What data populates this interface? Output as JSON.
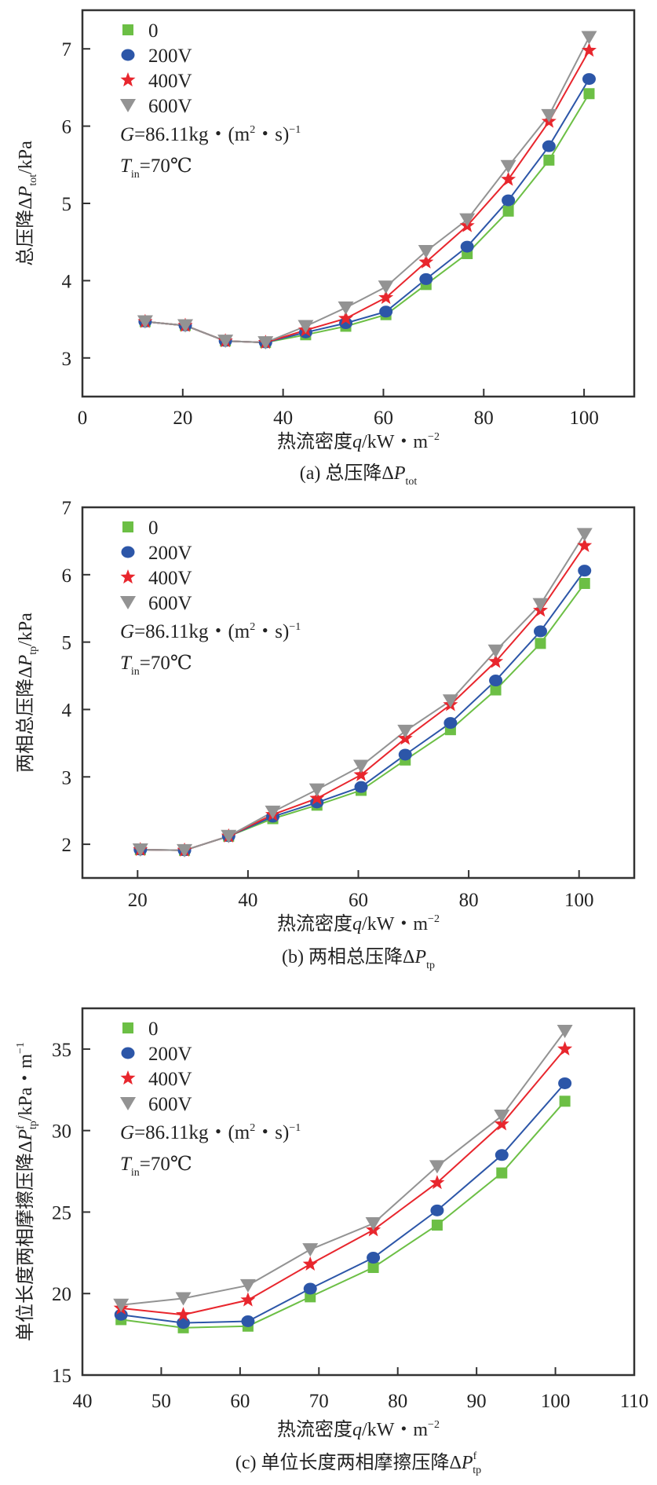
{
  "colors": {
    "s0": "#6cbf45",
    "s200": "#2c56a8",
    "s400": "#e8262d",
    "s600": "#939393",
    "axis": "#333333"
  },
  "annotations": {
    "G_sym": "G",
    "G_text": "=86.11kg・(m",
    "G_sup": "2",
    "G_tail": "・s)",
    "G_exp": "−1",
    "T_sym": "T",
    "T_sub": "in",
    "T_text": "=70℃"
  },
  "chart_data": [
    {
      "type": "line",
      "id": "a",
      "caption_prefix": "(a) 总压降ΔP",
      "caption_sub": "tot",
      "ylabel_prefix": "总压降ΔP",
      "ylabel_sub": "tot",
      "ylabel_suffix": "/kPa",
      "xlabel_prefix": "热流密度",
      "xlabel_var": "q",
      "xlabel_suffix": "/kW・m",
      "xlabel_exp": "−2",
      "xlim": [
        0,
        110
      ],
      "ylim": [
        2.5,
        7.5
      ],
      "xticks": [
        0,
        20,
        40,
        60,
        80,
        100
      ],
      "yticks": [
        3,
        4,
        5,
        6,
        7
      ],
      "x": [
        12.5,
        20.5,
        28.5,
        36.5,
        44.5,
        52.5,
        60.5,
        68.5,
        76.7,
        84.9,
        93.0,
        101.0
      ],
      "series": [
        {
          "name": "0",
          "marker": "square",
          "values": [
            3.47,
            3.42,
            3.22,
            3.2,
            3.3,
            3.41,
            3.56,
            3.95,
            4.35,
            4.9,
            5.56,
            6.42
          ]
        },
        {
          "name": "200V",
          "marker": "circle",
          "values": [
            3.47,
            3.42,
            3.22,
            3.2,
            3.33,
            3.45,
            3.6,
            4.02,
            4.44,
            5.04,
            5.74,
            6.61
          ]
        },
        {
          "name": "400V",
          "marker": "star",
          "values": [
            3.47,
            3.42,
            3.22,
            3.2,
            3.36,
            3.51,
            3.78,
            4.24,
            4.71,
            5.31,
            6.06,
            6.98
          ]
        },
        {
          "name": "600V",
          "marker": "triangle-down",
          "values": [
            3.47,
            3.42,
            3.22,
            3.2,
            3.41,
            3.65,
            3.92,
            4.38,
            4.79,
            5.48,
            6.14,
            7.15
          ]
        }
      ],
      "legend": "top-left"
    },
    {
      "type": "line",
      "id": "b",
      "caption_prefix": "(b) 两相总压降ΔP",
      "caption_sub": "tp",
      "ylabel_prefix": "两相总压降ΔP",
      "ylabel_sub": "tp",
      "ylabel_suffix": "/kPa",
      "xlabel_prefix": "热流密度",
      "xlabel_var": "q",
      "xlabel_suffix": "/kW・m",
      "xlabel_exp": "−2",
      "xlim": [
        10,
        110
      ],
      "ylim": [
        1.5,
        7.0
      ],
      "xticks": [
        20,
        40,
        60,
        80,
        100
      ],
      "yticks": [
        2,
        3,
        4,
        5,
        6,
        7
      ],
      "x": [
        20.5,
        28.5,
        36.5,
        44.5,
        52.5,
        60.5,
        68.5,
        76.7,
        84.9,
        93.0,
        101.0
      ],
      "series": [
        {
          "name": "0",
          "marker": "square",
          "values": [
            1.92,
            1.91,
            2.12,
            2.38,
            2.58,
            2.8,
            3.25,
            3.7,
            4.29,
            4.98,
            5.87
          ]
        },
        {
          "name": "200V",
          "marker": "circle",
          "values": [
            1.92,
            1.91,
            2.12,
            2.41,
            2.62,
            2.85,
            3.33,
            3.8,
            4.43,
            5.16,
            6.06
          ]
        },
        {
          "name": "400V",
          "marker": "star",
          "values": [
            1.92,
            1.91,
            2.12,
            2.44,
            2.68,
            3.03,
            3.57,
            4.07,
            4.71,
            5.47,
            6.43
          ]
        },
        {
          "name": "600V",
          "marker": "triangle-down",
          "values": [
            1.92,
            1.91,
            2.12,
            2.48,
            2.81,
            3.16,
            3.68,
            4.13,
            4.87,
            5.56,
            6.6
          ]
        }
      ],
      "legend": "top-left"
    },
    {
      "type": "line",
      "id": "c",
      "caption_prefix": "(c) 单位长度两相摩擦压降ΔP",
      "caption_sub": "tp",
      "caption_sup": "f",
      "ylabel_prefix": "单位长度两相摩擦压降ΔP",
      "ylabel_sub": "tp",
      "ylabel_sup": "f",
      "ylabel_suffix": "/kPa・m",
      "ylabel_exp": "−1",
      "xlabel_prefix": "热流密度",
      "xlabel_var": "q",
      "xlabel_suffix": "/kW・m",
      "xlabel_exp": "−2",
      "xlim": [
        40,
        110
      ],
      "ylim": [
        15,
        37.5
      ],
      "xticks": [
        40,
        50,
        60,
        70,
        80,
        90,
        100,
        110
      ],
      "yticks": [
        15,
        20,
        25,
        30,
        35
      ],
      "x": [
        44.9,
        52.8,
        61.0,
        68.9,
        76.9,
        85.0,
        93.2,
        101.2
      ],
      "series": [
        {
          "name": "0",
          "marker": "square",
          "values": [
            18.4,
            17.9,
            18.0,
            19.8,
            21.6,
            24.2,
            27.4,
            31.8
          ]
        },
        {
          "name": "200V",
          "marker": "circle",
          "values": [
            18.7,
            18.2,
            18.3,
            20.3,
            22.2,
            25.1,
            28.5,
            32.9
          ]
        },
        {
          "name": "400V",
          "marker": "star",
          "values": [
            19.1,
            18.7,
            19.6,
            21.8,
            23.9,
            26.8,
            30.4,
            35.0
          ]
        },
        {
          "name": "600V",
          "marker": "triangle-down",
          "values": [
            19.3,
            19.7,
            20.5,
            22.7,
            24.3,
            27.8,
            30.9,
            36.1
          ]
        }
      ],
      "legend": "top-left"
    }
  ]
}
